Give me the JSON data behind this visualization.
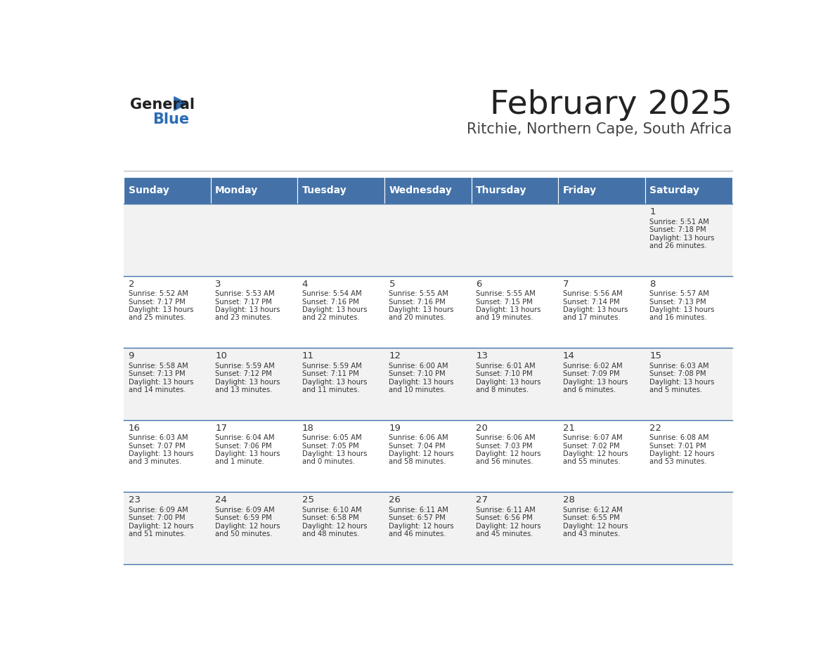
{
  "title": "February 2025",
  "subtitle": "Ritchie, Northern Cape, South Africa",
  "days_of_week": [
    "Sunday",
    "Monday",
    "Tuesday",
    "Wednesday",
    "Thursday",
    "Friday",
    "Saturday"
  ],
  "header_bg": "#4472a8",
  "header_text": "#ffffff",
  "cell_bg_odd": "#f2f2f2",
  "cell_bg_even": "#ffffff",
  "cell_border": "#4472a8",
  "title_color": "#222222",
  "subtitle_color": "#444444",
  "day_number_color": "#333333",
  "cell_text_color": "#333333",
  "logo_general_color": "#222222",
  "logo_blue_color": "#2a6db5",
  "calendar_data": [
    {
      "day": 1,
      "col": 6,
      "row": 0,
      "sunrise": "5:51 AM",
      "sunset": "7:18 PM",
      "daylight_hours": 13,
      "daylight_minutes": 26
    },
    {
      "day": 2,
      "col": 0,
      "row": 1,
      "sunrise": "5:52 AM",
      "sunset": "7:17 PM",
      "daylight_hours": 13,
      "daylight_minutes": 25
    },
    {
      "day": 3,
      "col": 1,
      "row": 1,
      "sunrise": "5:53 AM",
      "sunset": "7:17 PM",
      "daylight_hours": 13,
      "daylight_minutes": 23
    },
    {
      "day": 4,
      "col": 2,
      "row": 1,
      "sunrise": "5:54 AM",
      "sunset": "7:16 PM",
      "daylight_hours": 13,
      "daylight_minutes": 22
    },
    {
      "day": 5,
      "col": 3,
      "row": 1,
      "sunrise": "5:55 AM",
      "sunset": "7:16 PM",
      "daylight_hours": 13,
      "daylight_minutes": 20
    },
    {
      "day": 6,
      "col": 4,
      "row": 1,
      "sunrise": "5:55 AM",
      "sunset": "7:15 PM",
      "daylight_hours": 13,
      "daylight_minutes": 19
    },
    {
      "day": 7,
      "col": 5,
      "row": 1,
      "sunrise": "5:56 AM",
      "sunset": "7:14 PM",
      "daylight_hours": 13,
      "daylight_minutes": 17
    },
    {
      "day": 8,
      "col": 6,
      "row": 1,
      "sunrise": "5:57 AM",
      "sunset": "7:13 PM",
      "daylight_hours": 13,
      "daylight_minutes": 16
    },
    {
      "day": 9,
      "col": 0,
      "row": 2,
      "sunrise": "5:58 AM",
      "sunset": "7:13 PM",
      "daylight_hours": 13,
      "daylight_minutes": 14
    },
    {
      "day": 10,
      "col": 1,
      "row": 2,
      "sunrise": "5:59 AM",
      "sunset": "7:12 PM",
      "daylight_hours": 13,
      "daylight_minutes": 13
    },
    {
      "day": 11,
      "col": 2,
      "row": 2,
      "sunrise": "5:59 AM",
      "sunset": "7:11 PM",
      "daylight_hours": 13,
      "daylight_minutes": 11
    },
    {
      "day": 12,
      "col": 3,
      "row": 2,
      "sunrise": "6:00 AM",
      "sunset": "7:10 PM",
      "daylight_hours": 13,
      "daylight_minutes": 10
    },
    {
      "day": 13,
      "col": 4,
      "row": 2,
      "sunrise": "6:01 AM",
      "sunset": "7:10 PM",
      "daylight_hours": 13,
      "daylight_minutes": 8
    },
    {
      "day": 14,
      "col": 5,
      "row": 2,
      "sunrise": "6:02 AM",
      "sunset": "7:09 PM",
      "daylight_hours": 13,
      "daylight_minutes": 6
    },
    {
      "day": 15,
      "col": 6,
      "row": 2,
      "sunrise": "6:03 AM",
      "sunset": "7:08 PM",
      "daylight_hours": 13,
      "daylight_minutes": 5
    },
    {
      "day": 16,
      "col": 0,
      "row": 3,
      "sunrise": "6:03 AM",
      "sunset": "7:07 PM",
      "daylight_hours": 13,
      "daylight_minutes": 3
    },
    {
      "day": 17,
      "col": 1,
      "row": 3,
      "sunrise": "6:04 AM",
      "sunset": "7:06 PM",
      "daylight_hours": 13,
      "daylight_minutes": 1
    },
    {
      "day": 18,
      "col": 2,
      "row": 3,
      "sunrise": "6:05 AM",
      "sunset": "7:05 PM",
      "daylight_hours": 13,
      "daylight_minutes": 0
    },
    {
      "day": 19,
      "col": 3,
      "row": 3,
      "sunrise": "6:06 AM",
      "sunset": "7:04 PM",
      "daylight_hours": 12,
      "daylight_minutes": 58
    },
    {
      "day": 20,
      "col": 4,
      "row": 3,
      "sunrise": "6:06 AM",
      "sunset": "7:03 PM",
      "daylight_hours": 12,
      "daylight_minutes": 56
    },
    {
      "day": 21,
      "col": 5,
      "row": 3,
      "sunrise": "6:07 AM",
      "sunset": "7:02 PM",
      "daylight_hours": 12,
      "daylight_minutes": 55
    },
    {
      "day": 22,
      "col": 6,
      "row": 3,
      "sunrise": "6:08 AM",
      "sunset": "7:01 PM",
      "daylight_hours": 12,
      "daylight_minutes": 53
    },
    {
      "day": 23,
      "col": 0,
      "row": 4,
      "sunrise": "6:09 AM",
      "sunset": "7:00 PM",
      "daylight_hours": 12,
      "daylight_minutes": 51
    },
    {
      "day": 24,
      "col": 1,
      "row": 4,
      "sunrise": "6:09 AM",
      "sunset": "6:59 PM",
      "daylight_hours": 12,
      "daylight_minutes": 50
    },
    {
      "day": 25,
      "col": 2,
      "row": 4,
      "sunrise": "6:10 AM",
      "sunset": "6:58 PM",
      "daylight_hours": 12,
      "daylight_minutes": 48
    },
    {
      "day": 26,
      "col": 3,
      "row": 4,
      "sunrise": "6:11 AM",
      "sunset": "6:57 PM",
      "daylight_hours": 12,
      "daylight_minutes": 46
    },
    {
      "day": 27,
      "col": 4,
      "row": 4,
      "sunrise": "6:11 AM",
      "sunset": "6:56 PM",
      "daylight_hours": 12,
      "daylight_minutes": 45
    },
    {
      "day": 28,
      "col": 5,
      "row": 4,
      "sunrise": "6:12 AM",
      "sunset": "6:55 PM",
      "daylight_hours": 12,
      "daylight_minutes": 43
    }
  ]
}
